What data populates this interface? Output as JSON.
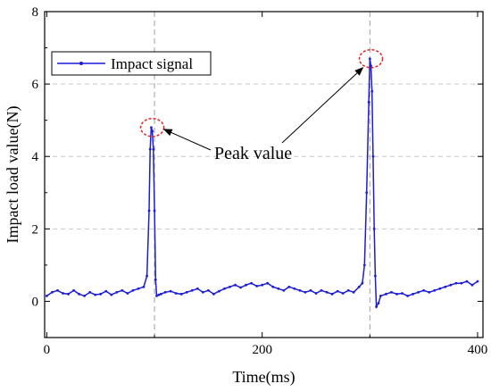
{
  "chart_data": {
    "type": "line",
    "title": "",
    "xlabel": "Time(ms)",
    "ylabel": "Impact load value(N)",
    "xlim": [
      -2,
      405
    ],
    "ylim": [
      -1,
      8
    ],
    "xticks": [
      0,
      200,
      400
    ],
    "yticks": [
      0,
      2,
      4,
      6,
      8
    ],
    "xtick_labels": [
      "0",
      "200",
      "400"
    ],
    "ytick_labels": [
      "0",
      "2",
      "4",
      "6",
      "8"
    ],
    "grid": "horizontal dashed at y=2,4,6",
    "vertical_markers": [
      100,
      300
    ],
    "legend": {
      "position": "top-left",
      "entries": [
        "Impact signal"
      ]
    },
    "series": [
      {
        "name": "Impact signal",
        "color": "#1c1cd6",
        "marker": "dot",
        "x": [
          0,
          5,
          10,
          15,
          20,
          25,
          30,
          35,
          40,
          45,
          50,
          55,
          60,
          65,
          70,
          75,
          80,
          85,
          90,
          93,
          95,
          96,
          97,
          98,
          99,
          100,
          101,
          102,
          104,
          106,
          110,
          115,
          120,
          125,
          130,
          135,
          140,
          145,
          150,
          155,
          160,
          165,
          170,
          175,
          180,
          185,
          190,
          195,
          200,
          205,
          210,
          215,
          220,
          225,
          230,
          235,
          240,
          245,
          250,
          255,
          260,
          265,
          270,
          275,
          280,
          285,
          290,
          293,
          295,
          297,
          299,
          300,
          301,
          302,
          303,
          304,
          305,
          306,
          308,
          310,
          315,
          320,
          325,
          330,
          335,
          340,
          345,
          350,
          355,
          360,
          365,
          370,
          375,
          380,
          385,
          390,
          395,
          400
        ],
        "y": [
          0.15,
          0.25,
          0.3,
          0.22,
          0.2,
          0.3,
          0.2,
          0.15,
          0.25,
          0.18,
          0.2,
          0.28,
          0.18,
          0.25,
          0.3,
          0.22,
          0.3,
          0.35,
          0.4,
          0.7,
          2.5,
          4.2,
          4.8,
          4.7,
          4.2,
          2.5,
          0.6,
          0.15,
          0.18,
          0.2,
          0.25,
          0.28,
          0.22,
          0.2,
          0.25,
          0.3,
          0.35,
          0.25,
          0.3,
          0.2,
          0.28,
          0.35,
          0.4,
          0.45,
          0.38,
          0.45,
          0.5,
          0.42,
          0.45,
          0.5,
          0.4,
          0.35,
          0.3,
          0.4,
          0.35,
          0.3,
          0.25,
          0.3,
          0.22,
          0.3,
          0.25,
          0.2,
          0.28,
          0.22,
          0.3,
          0.25,
          0.4,
          0.5,
          1.0,
          3.0,
          5.5,
          6.7,
          6.5,
          5.8,
          4.0,
          2.0,
          0.7,
          -0.15,
          -0.05,
          0.15,
          0.2,
          0.25,
          0.2,
          0.22,
          0.15,
          0.2,
          0.25,
          0.3,
          0.25,
          0.3,
          0.35,
          0.4,
          0.45,
          0.5,
          0.5,
          0.55,
          0.45,
          0.55
        ]
      }
    ],
    "annotations": [
      {
        "text": "Peak value",
        "targets": [
          [
            98,
            4.8
          ],
          [
            301,
            6.7
          ]
        ]
      }
    ]
  }
}
